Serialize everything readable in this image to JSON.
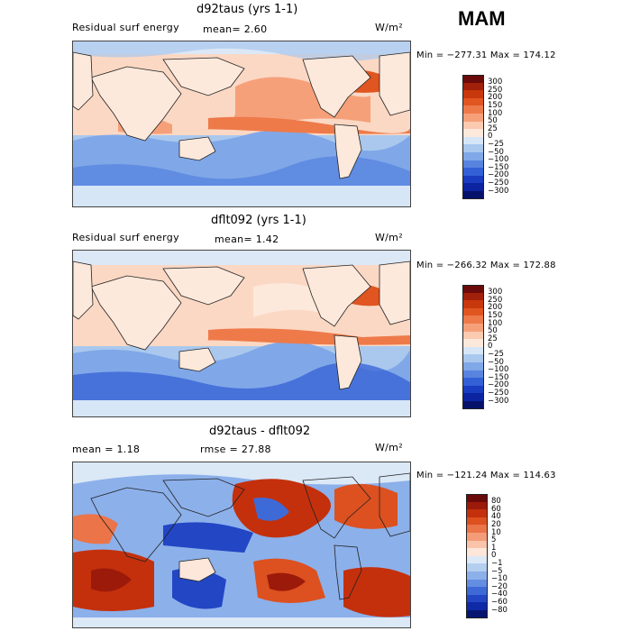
{
  "season": "MAM",
  "panels": [
    {
      "title": "d92taus (yrs 1-1)",
      "left_label": "Residual surf energy",
      "center_label": "mean=   2.60",
      "units": "W/m²",
      "minmax": "Min = −277.31  Max = 174.12",
      "colorbar": {
        "labels": [
          "300",
          "250",
          "200",
          "150",
          "100",
          "50",
          "25",
          "0",
          "−25",
          "−50",
          "−100",
          "−150",
          "−200",
          "−250",
          "−300"
        ],
        "colors": [
          "#6b0a0a",
          "#a1200a",
          "#c8380d",
          "#e05520",
          "#ee7a4a",
          "#f6a07a",
          "#fbcab0",
          "#fde9dc",
          "#d6e6f6",
          "#aac8ee",
          "#80a8e8",
          "#5884e0",
          "#3460d6",
          "#1a3cc0",
          "#0c24a0",
          "#06126a"
        ]
      }
    },
    {
      "title": "dflt092 (yrs 1-1)",
      "left_label": "Residual surf energy",
      "center_label": "mean=   1.42",
      "units": "W/m²",
      "minmax": "Min = −266.32  Max = 172.88",
      "colorbar": {
        "labels": [
          "300",
          "250",
          "200",
          "150",
          "100",
          "50",
          "25",
          "0",
          "−25",
          "−50",
          "−100",
          "−150",
          "−200",
          "−250",
          "−300"
        ],
        "colors": [
          "#6b0a0a",
          "#a1200a",
          "#c8380d",
          "#e05520",
          "#ee7a4a",
          "#f6a07a",
          "#fbcab0",
          "#fde9dc",
          "#d6e6f6",
          "#aac8ee",
          "#80a8e8",
          "#5884e0",
          "#3460d6",
          "#1a3cc0",
          "#0c24a0",
          "#06126a"
        ]
      }
    },
    {
      "title": "d92taus - dflt092",
      "left_label": "mean =    1.18",
      "center_label": "rmse =   27.88",
      "units": "W/m²",
      "minmax": "Min = −121.24  Max = 114.63",
      "colorbar": {
        "labels": [
          "80",
          "60",
          "40",
          "20",
          "10",
          "5",
          "1",
          "0",
          "−1",
          "−5",
          "−10",
          "−20",
          "−40",
          "−60",
          "−80"
        ],
        "colors": [
          "#6b0a0a",
          "#9c1a0a",
          "#c4300c",
          "#dd5020",
          "#eb7448",
          "#f49c78",
          "#f9c4aa",
          "#fde6da",
          "#dbe8f6",
          "#b4cef0",
          "#8cb0ea",
          "#648ee2",
          "#3e6ad8",
          "#2246c4",
          "#0e2aa6",
          "#061670"
        ]
      }
    }
  ]
}
